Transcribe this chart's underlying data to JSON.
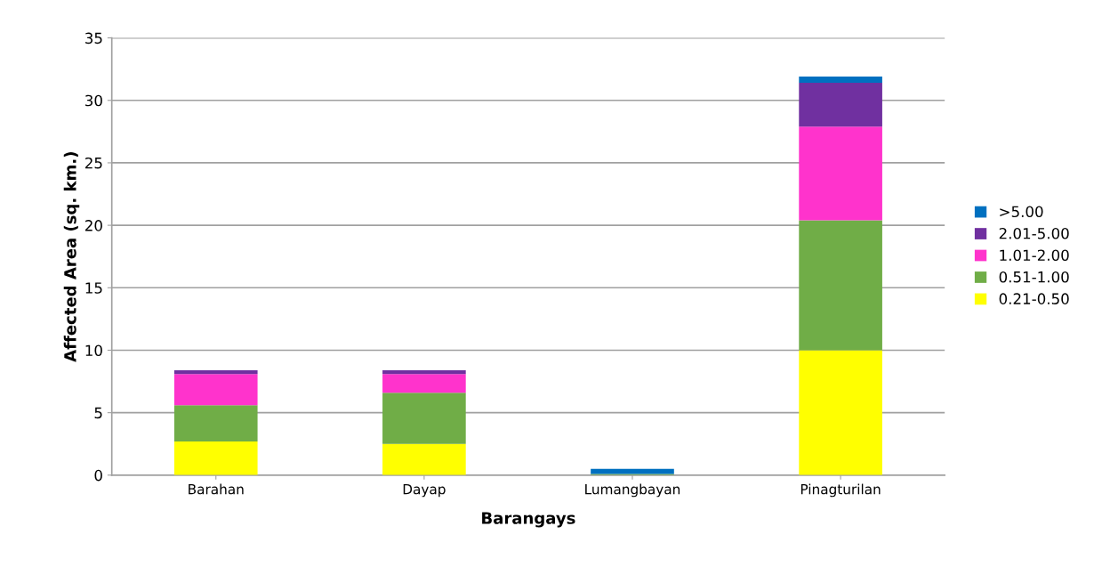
{
  "chart_data": {
    "type": "bar",
    "stacked": true,
    "xlabel": "Barangays",
    "ylabel": "Affected Area (sq. km.)",
    "categories": [
      "Barahan",
      "Dayap",
      "Lumangbayan",
      "Pinagturilan"
    ],
    "series": [
      {
        "name": "0.21-0.50",
        "color": "#ffff00",
        "values": [
          2.7,
          2.5,
          0,
          10.0
        ]
      },
      {
        "name": "0.51-1.00",
        "color": "#70ad47",
        "values": [
          2.9,
          4.1,
          0.1,
          10.4
        ]
      },
      {
        "name": "1.01-2.00",
        "color": "#ff33cc",
        "values": [
          2.5,
          1.5,
          0,
          7.5
        ]
      },
      {
        "name": "2.01-5.00",
        "color": "#7030a0",
        "values": [
          0.3,
          0.3,
          0,
          3.5
        ]
      },
      {
        "name": ">5.00",
        "color": "#0070c0",
        "values": [
          0,
          0,
          0.4,
          0.5
        ]
      }
    ],
    "ylim": [
      0,
      35
    ],
    "yticks": [
      0,
      5,
      10,
      15,
      20,
      25,
      30,
      35
    ],
    "grid": "y",
    "legend": "right"
  }
}
